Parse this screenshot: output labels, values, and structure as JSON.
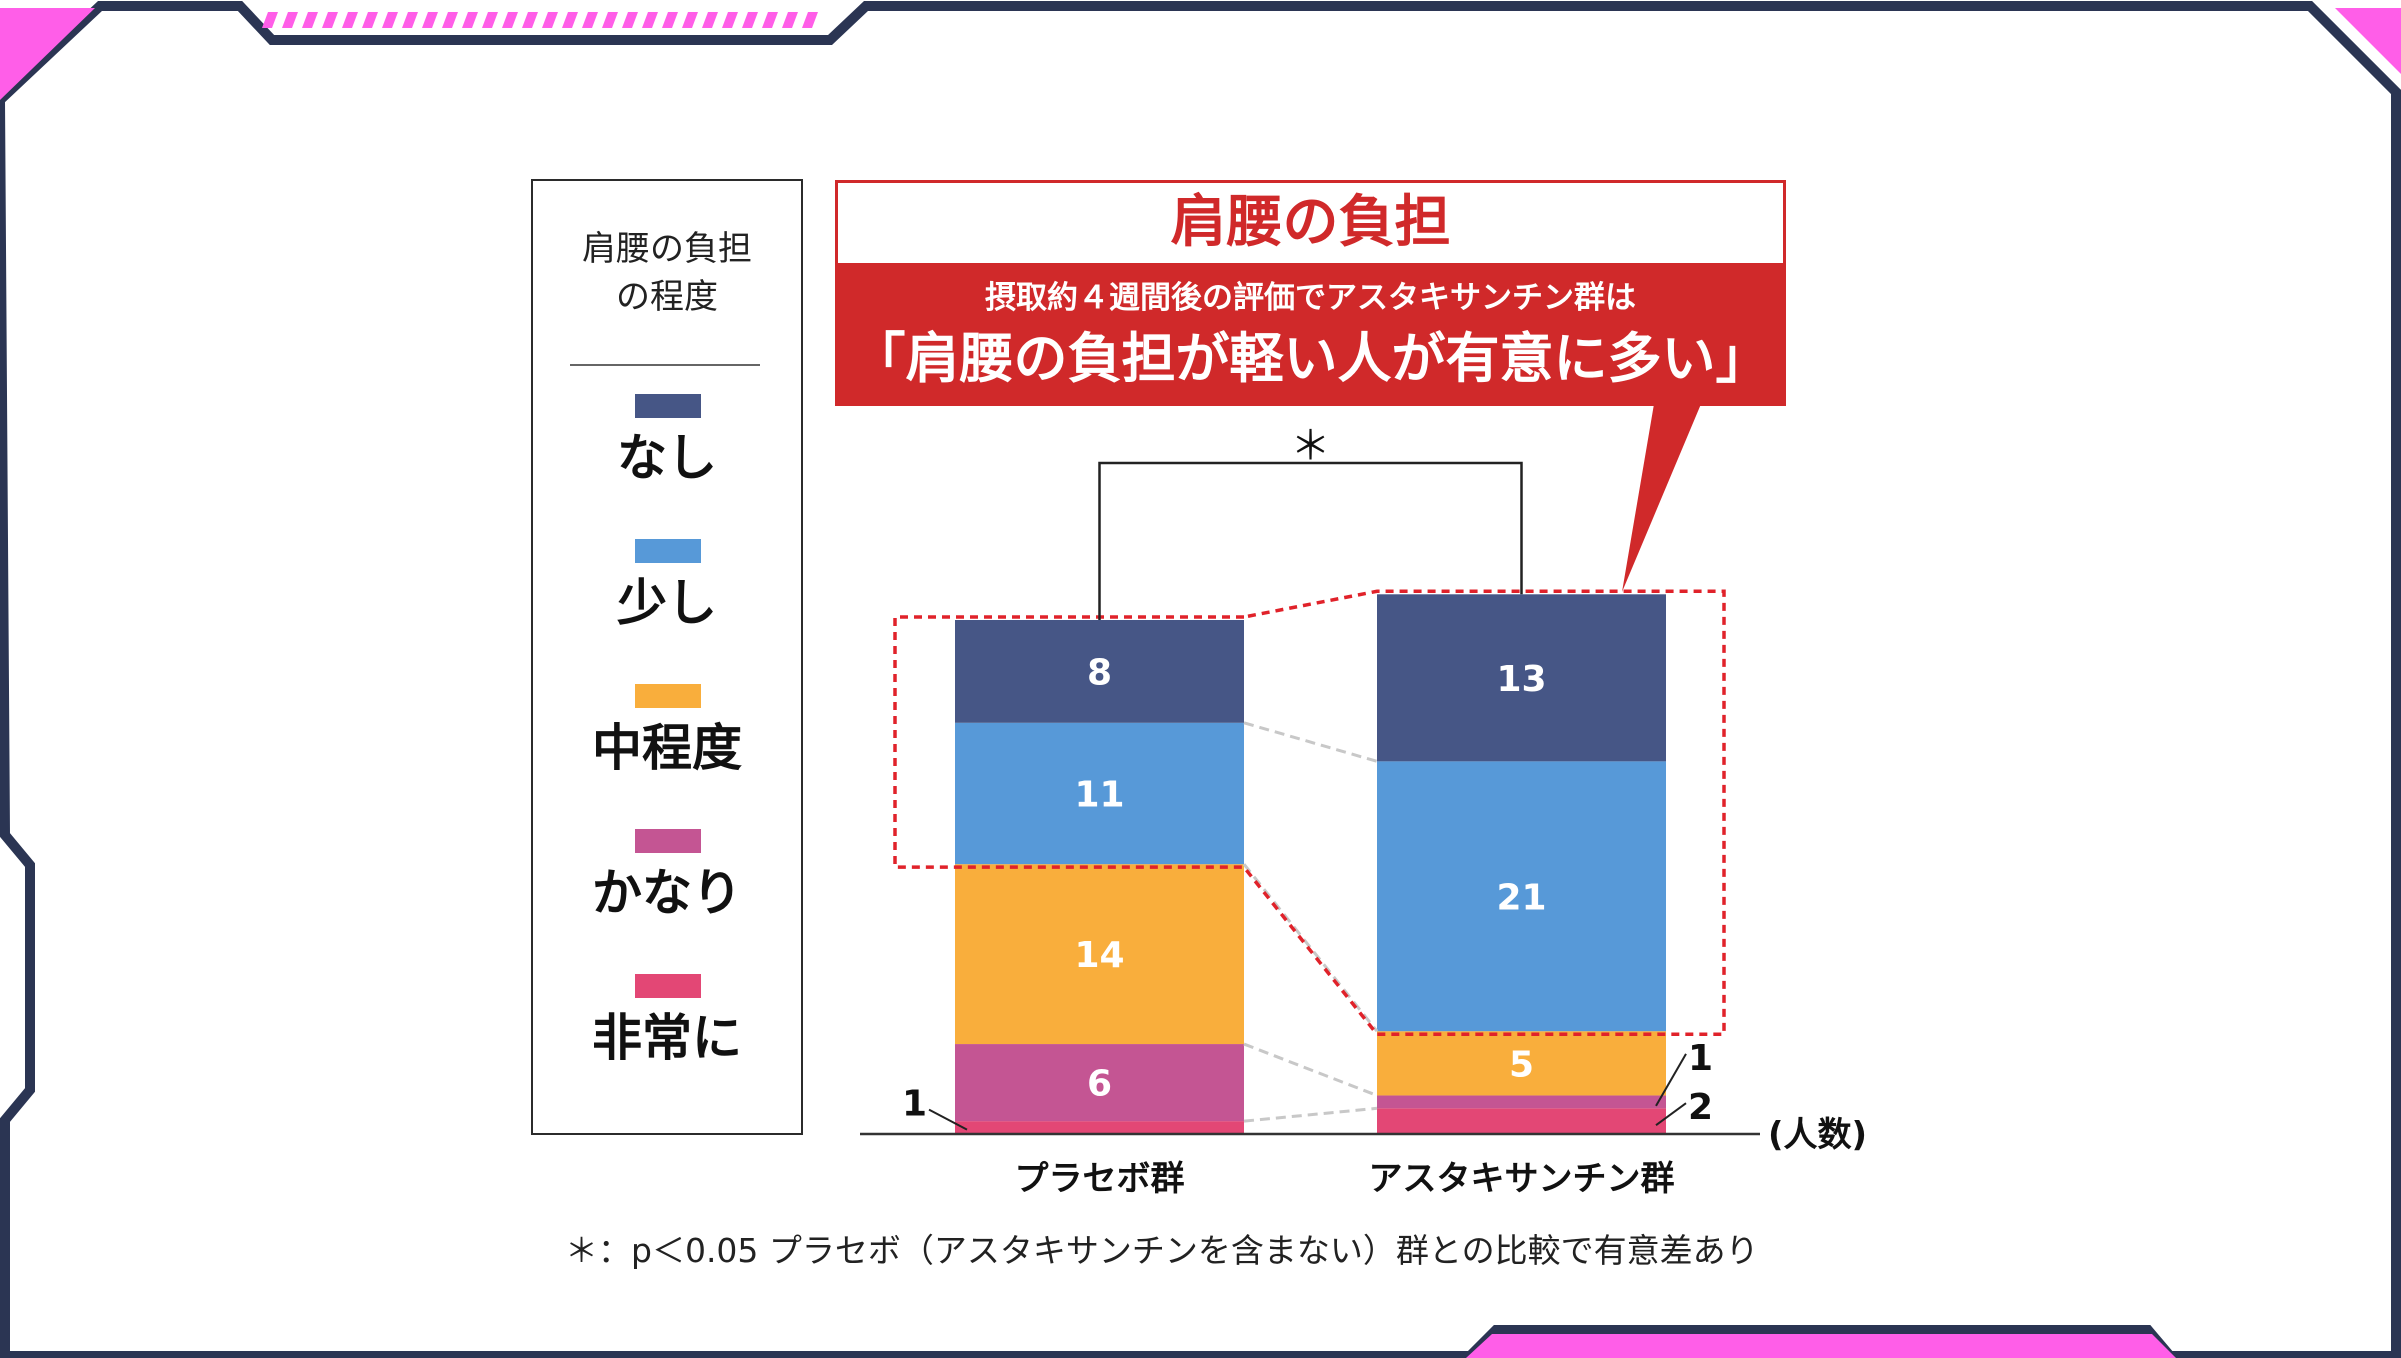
{
  "legend": {
    "title_line1": "肩腰の負担",
    "title_line2": "の程度",
    "items": [
      {
        "label": "なし",
        "color": "#465686"
      },
      {
        "label": "少し",
        "color": "#5799d8"
      },
      {
        "label": "中程度",
        "color": "#f9ae3c"
      },
      {
        "label": "かなり",
        "color": "#c45593"
      },
      {
        "label": "非常に",
        "color": "#e34775"
      }
    ]
  },
  "callout": {
    "heading": "肩腰の負担",
    "subtitle": "摂取約４週間後の評価でアスタキサンチン群は",
    "main": "「肩腰の負担が軽い人が有意に多い」"
  },
  "significance_mark": "＊",
  "footnote": "＊：p＜0.05 プラセボ（アスタキサンチンを含まない）群との比較で有意差あり",
  "chart_data": {
    "type": "bar",
    "stacked": true,
    "categories": [
      "プラセボ群",
      "アスタキサンチン群"
    ],
    "series": [
      {
        "name": "非常に",
        "values": [
          1,
          2
        ],
        "color": "#e34775"
      },
      {
        "name": "かなり",
        "values": [
          6,
          1
        ],
        "color": "#c45593"
      },
      {
        "name": "中程度",
        "values": [
          14,
          5
        ],
        "color": "#f9ae3c"
      },
      {
        "name": "少し",
        "values": [
          11,
          21
        ],
        "color": "#5799d8"
      },
      {
        "name": "なし",
        "values": [
          8,
          13
        ],
        "color": "#465686"
      }
    ],
    "axis_unit_label": "(人数)",
    "legend_position": "left"
  },
  "frame": {
    "border_color": "#2b3553",
    "accent_color": "#ff5ee8"
  }
}
